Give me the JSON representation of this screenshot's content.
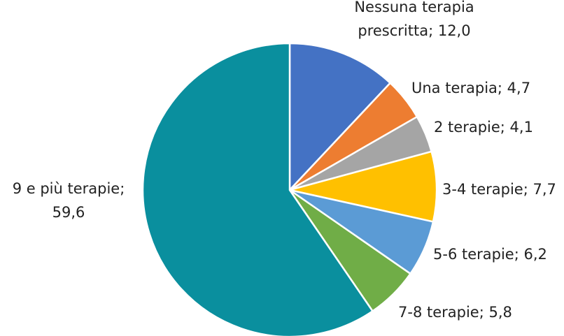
{
  "chart_data": {
    "type": "pie",
    "values": [
      12.0,
      4.7,
      4.1,
      7.7,
      6.2,
      5.8,
      59.6
    ],
    "value_labels": [
      "Nessuna terapia\nprescritta; 12,0",
      "Una terapia; 4,7",
      "2 terapie; 4,1",
      "3-4 terapie; 7,7",
      "5-6 terapie; 6,2",
      "7-8 terapie; 5,8",
      "9 e più terapie;\n59,6"
    ],
    "colors": [
      "#4472c4",
      "#ed7d31",
      "#a5a5a5",
      "#ffc000",
      "#5b9bd5",
      "#70ad47",
      "#0a8f9e"
    ]
  }
}
